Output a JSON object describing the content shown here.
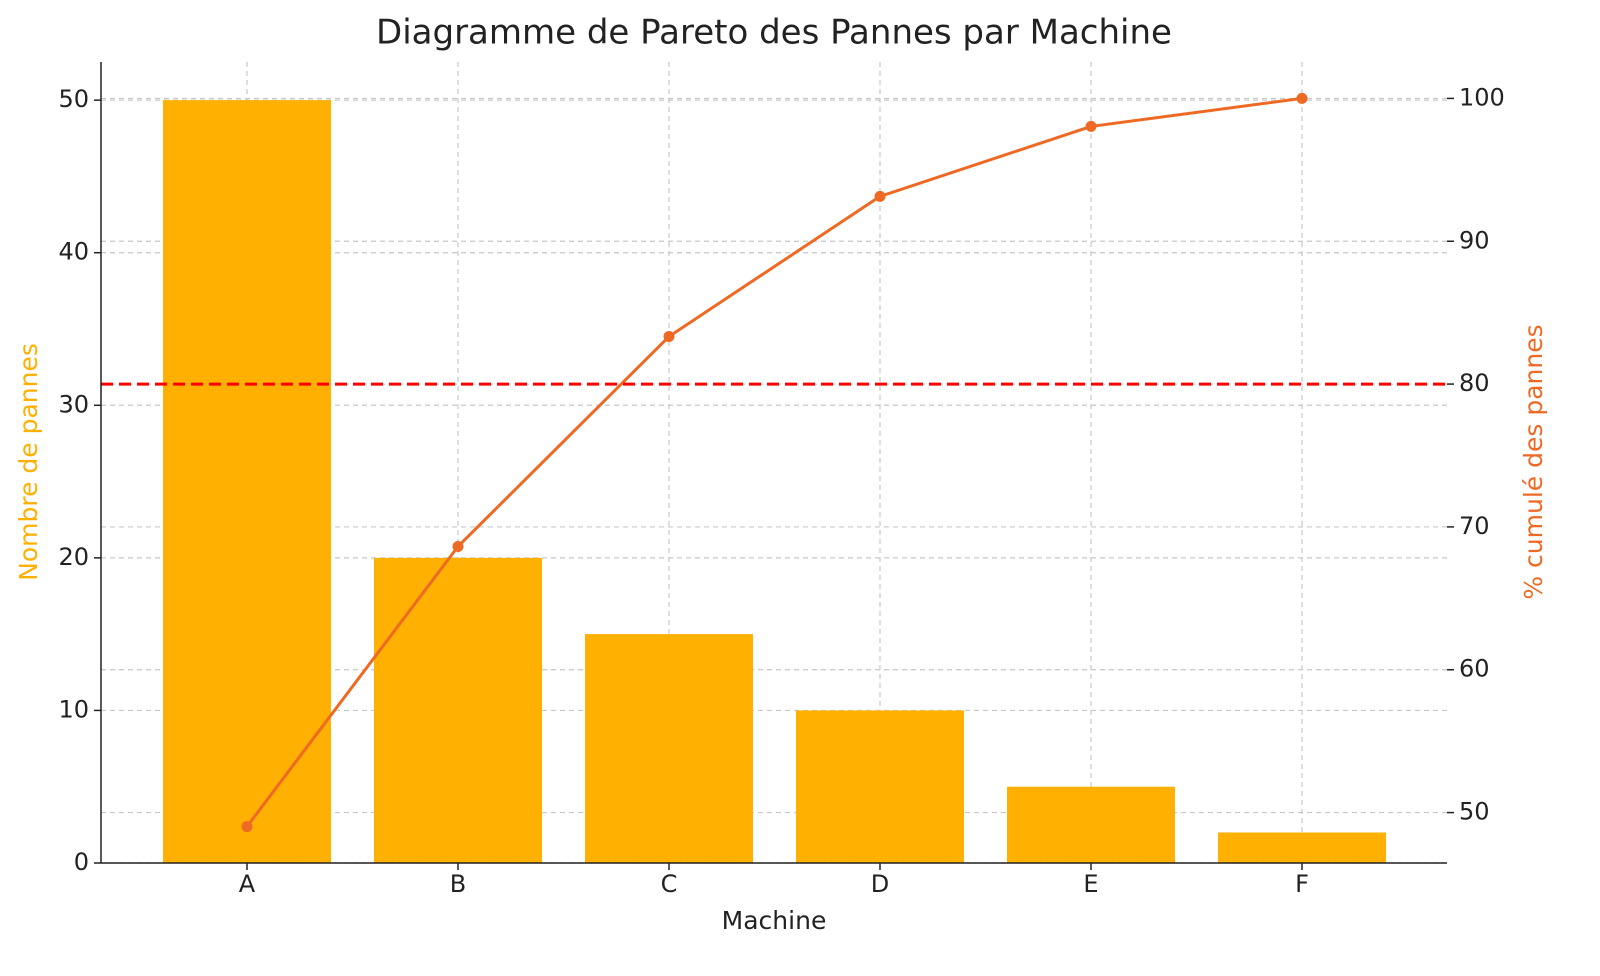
{
  "chart_data": {
    "type": "bar",
    "title": "Diagramme de Pareto des Pannes par Machine",
    "xlabel": "Machine",
    "ylabel": "Nombre de pannes",
    "y2label": "% cumulé des pannes",
    "categories": [
      "A",
      "B",
      "C",
      "D",
      "E",
      "F"
    ],
    "series": [
      {
        "name": "Nombre de pannes",
        "type": "bar",
        "color": "#ffb000",
        "values": [
          50,
          20,
          15,
          10,
          5,
          2
        ]
      },
      {
        "name": "% cumulé des pannes",
        "type": "line",
        "axis": "y2",
        "color": "#ee6a24",
        "values": [
          49.02,
          68.63,
          83.33,
          93.14,
          98.04,
          100
        ]
      }
    ],
    "threshold": {
      "value": 80,
      "axis": "y2",
      "color": "#ff0000"
    },
    "ylim": [
      0,
      52.5
    ],
    "yticks": [
      0,
      10,
      20,
      30,
      40,
      50
    ],
    "y2lim": [
      46.47,
      102.55
    ],
    "y2ticks": [
      50,
      60,
      70,
      80,
      90,
      100
    ],
    "grid": true
  }
}
